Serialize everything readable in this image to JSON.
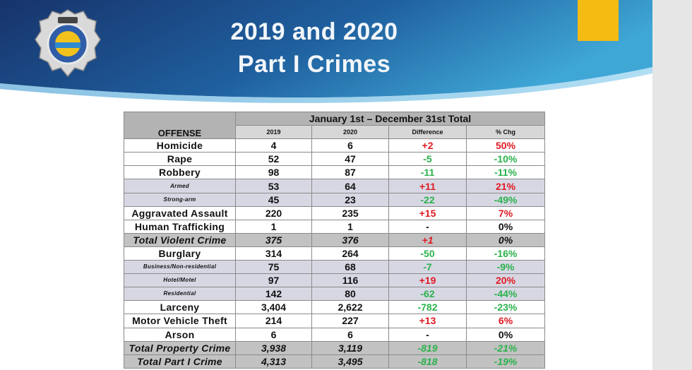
{
  "slide": {
    "title_line1": "2019 and 2020",
    "title_line2": "Part I Crimes",
    "accent_yellow": "#f4bb13",
    "banner_dark": "#17336b",
    "banner_light": "#3fa7d6",
    "badge_icon": "police-badge-icon"
  },
  "table": {
    "offense_header": "OFFENSE",
    "period_header": "January 1st – December 31st Total",
    "columns": [
      "2019",
      "2020",
      "Difference",
      "% Chg"
    ],
    "rows": [
      {
        "offense": "Homicide",
        "y2019": "4",
        "y2020": "6",
        "diff": "+2",
        "pct": "50%",
        "style": "normal",
        "diff_color": "red",
        "pct_color": "red"
      },
      {
        "offense": "Rape",
        "y2019": "52",
        "y2020": "47",
        "diff": "-5",
        "pct": "-10%",
        "style": "normal",
        "diff_color": "green",
        "pct_color": "green"
      },
      {
        "offense": "Robbery",
        "y2019": "98",
        "y2020": "87",
        "diff": "-11",
        "pct": "-11%",
        "style": "normal",
        "diff_color": "green",
        "pct_color": "green"
      },
      {
        "offense": "Armed",
        "y2019": "53",
        "y2020": "64",
        "diff": "+11",
        "pct": "21%",
        "style": "sub",
        "diff_color": "red",
        "pct_color": "red"
      },
      {
        "offense": "Strong-arm",
        "y2019": "45",
        "y2020": "23",
        "diff": "-22",
        "pct": "-49%",
        "style": "sub",
        "diff_color": "green",
        "pct_color": "green"
      },
      {
        "offense": "Aggravated Assault",
        "y2019": "220",
        "y2020": "235",
        "diff": "+15",
        "pct": "7%",
        "style": "normal",
        "diff_color": "red",
        "pct_color": "red"
      },
      {
        "offense": "Human Trafficking",
        "y2019": "1",
        "y2020": "1",
        "diff": "-",
        "pct": "0%",
        "style": "normal",
        "diff_color": "black",
        "pct_color": "black"
      },
      {
        "offense": "Total Violent Crime",
        "y2019": "375",
        "y2020": "376",
        "diff": "+1",
        "pct": "0%",
        "style": "total",
        "diff_color": "red",
        "pct_color": "black"
      },
      {
        "offense": "Burglary",
        "y2019": "314",
        "y2020": "264",
        "diff": "-50",
        "pct": "-16%",
        "style": "normal",
        "diff_color": "green",
        "pct_color": "green"
      },
      {
        "offense": "Business/Non-residential",
        "y2019": "75",
        "y2020": "68",
        "diff": "-7",
        "pct": "-9%",
        "style": "sub",
        "diff_color": "green",
        "pct_color": "green"
      },
      {
        "offense": "Hotel/Motel",
        "y2019": "97",
        "y2020": "116",
        "diff": "+19",
        "pct": "20%",
        "style": "sub",
        "diff_color": "red",
        "pct_color": "red"
      },
      {
        "offense": "Residential",
        "y2019": "142",
        "y2020": "80",
        "diff": "-62",
        "pct": "-44%",
        "style": "sub",
        "diff_color": "green",
        "pct_color": "green"
      },
      {
        "offense": "Larceny",
        "y2019": "3,404",
        "y2020": "2,622",
        "diff": "-782",
        "pct": "-23%",
        "style": "normal",
        "diff_color": "green",
        "pct_color": "green"
      },
      {
        "offense": "Motor Vehicle Theft",
        "y2019": "214",
        "y2020": "227",
        "diff": "+13",
        "pct": "6%",
        "style": "normal",
        "diff_color": "red",
        "pct_color": "red"
      },
      {
        "offense": "Arson",
        "y2019": "6",
        "y2020": "6",
        "diff": "-",
        "pct": "0%",
        "style": "normal",
        "diff_color": "black",
        "pct_color": "black"
      },
      {
        "offense": "Total Property Crime",
        "y2019": "3,938",
        "y2020": "3,119",
        "diff": "-819",
        "pct": "-21%",
        "style": "total",
        "diff_color": "green",
        "pct_color": "green"
      },
      {
        "offense": "Total Part I Crime",
        "y2019": "4,313",
        "y2020": "3,495",
        "diff": "-818",
        "pct": "-19%",
        "style": "total",
        "diff_color": "green",
        "pct_color": "green"
      }
    ]
  }
}
